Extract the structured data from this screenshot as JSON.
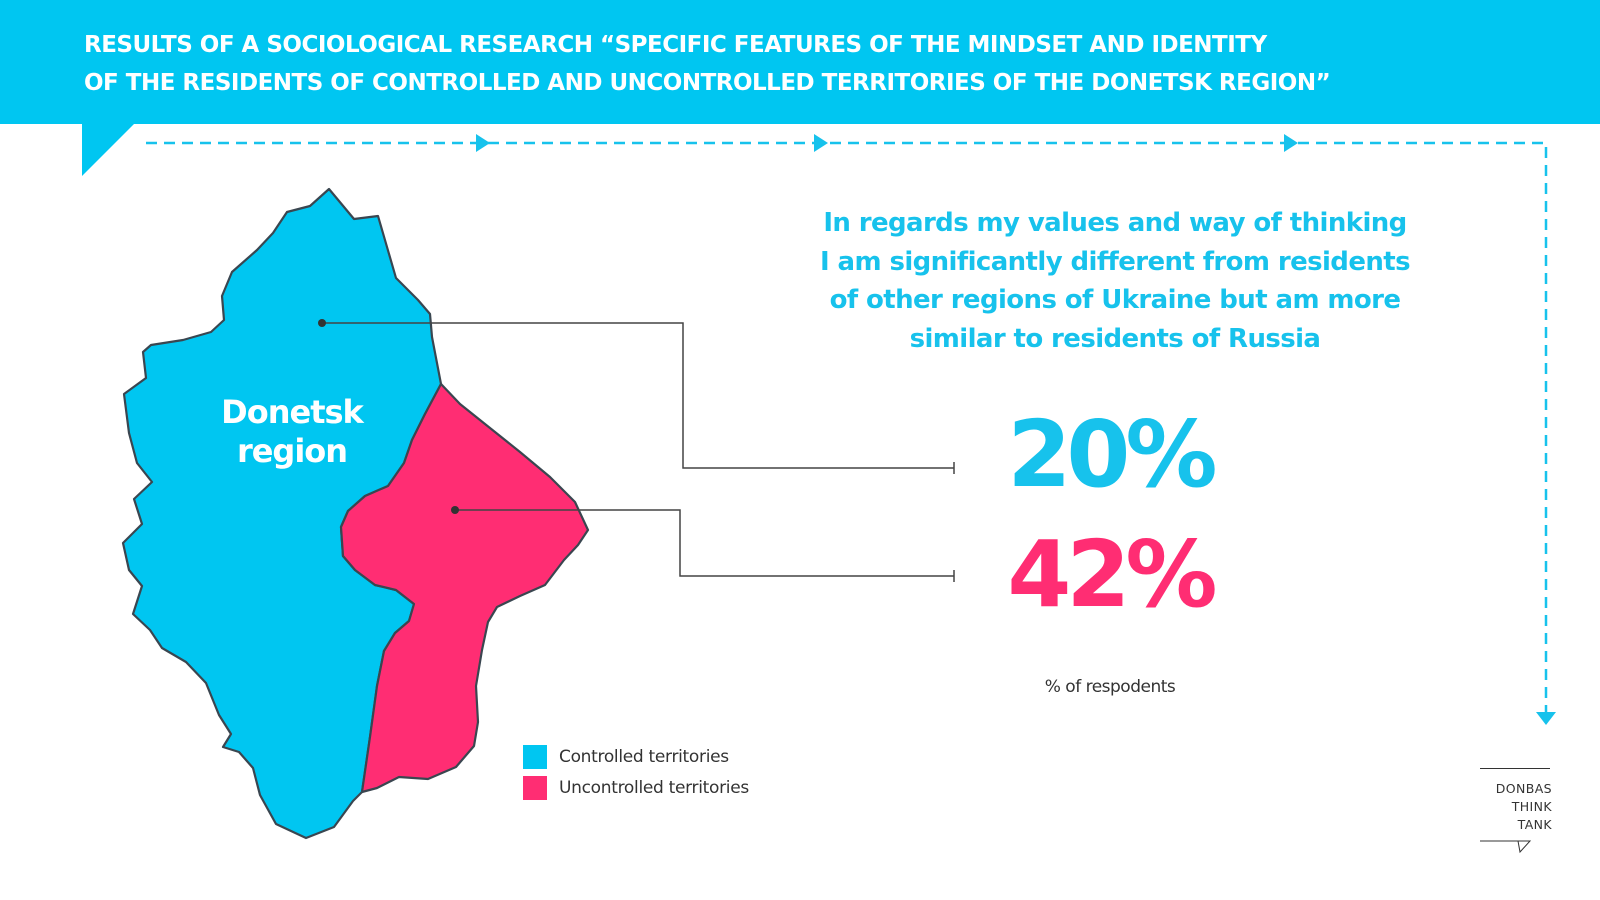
{
  "header": {
    "title_line1": "RESULTS OF A SOCIOLOGICAL RESEARCH “SPECIFIC FEATURES OF THE MINDSET AND IDENTITY",
    "title_line2": "OF THE RESIDENTS OF CONTROLLED AND UNCONTROLLED TERRITORIES OF THE DONETSK REGION”"
  },
  "map": {
    "region_label_line1": "Donetsk",
    "region_label_line2": "region"
  },
  "question": {
    "line1": "In regards my values and way of thinking",
    "line2": "I am significantly different from residents",
    "line3": "of other regions of Ukraine but am more",
    "line4": "similar to residents of Russia"
  },
  "results": {
    "controlled_value": "20%",
    "uncontrolled_value": "42%",
    "unit_note": "% of respodents"
  },
  "legend": {
    "controlled_label": "Controlled territories",
    "uncontrolled_label": "Uncontrolled territories"
  },
  "logo": {
    "line1": "DONBAS",
    "line2": "THINK",
    "line3": "TANK"
  },
  "colors": {
    "controlled": "#00c6f1",
    "uncontrolled": "#ff2d73",
    "header": "#00c6f1"
  }
}
